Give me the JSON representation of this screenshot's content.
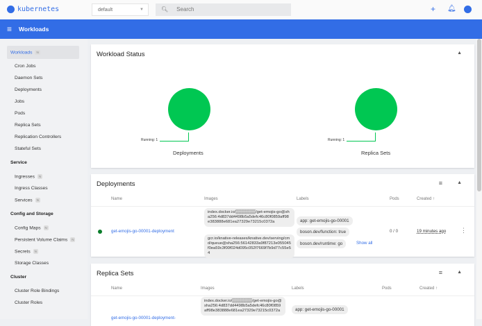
{
  "header": {
    "brand": "kubernetes",
    "namespace": "default",
    "search_placeholder": "Search"
  },
  "toolbar": {
    "title": "Workloads"
  },
  "sidebar": {
    "workloads": {
      "label": "Workloads",
      "badge": "N"
    },
    "workload_items": [
      "Cron Jobs",
      "Daemon Sets",
      "Deployments",
      "Jobs",
      "Pods",
      "Replica Sets",
      "Replication Controllers",
      "Stateful Sets"
    ],
    "service_header": "Service",
    "service_items": [
      {
        "label": "Ingresses",
        "badge": "N"
      },
      {
        "label": "Ingress Classes",
        "badge": ""
      },
      {
        "label": "Services",
        "badge": "N"
      }
    ],
    "config_header": "Config and Storage",
    "config_items": [
      {
        "label": "Config Maps",
        "badge": "N"
      },
      {
        "label": "Persistent Volume Claims",
        "badge": "N"
      },
      {
        "label": "Secrets",
        "badge": "N"
      },
      {
        "label": "Storage Classes",
        "badge": ""
      }
    ],
    "cluster_header": "Cluster",
    "cluster_items": [
      "Cluster Role Bindings",
      "Cluster Roles"
    ]
  },
  "workload_status": {
    "title": "Workload Status",
    "charts": [
      {
        "label": "Deployments",
        "legend": "Running: 1",
        "running": 1
      },
      {
        "label": "Replica Sets",
        "legend": "Running: 1",
        "running": 1
      }
    ],
    "color": "#00c752"
  },
  "columns": {
    "name": "Name",
    "images": "Images",
    "labels": "Labels",
    "pods": "Pods",
    "created": "Created",
    "sort_icon": "↑"
  },
  "deployments": {
    "title": "Deployments",
    "row": {
      "name": "get-emojis-go-00001-deployment",
      "images": [
        "index.docker.io/▒▒▒▒▒▒▒/get-emojis-go@sha256:4d837dd4498b5a5defc46c80f0859aff98e383888e681ea27329e73215c0372a",
        "gcr.io/knative-releases/knative.dev/serving/cmd/queue@sha256:56142833a9f87213e055045f0ea59c3f00f024d095c052f7669f7b9d77c55e54"
      ],
      "labels": [
        "app: get-emojis-go-00001",
        "boson.dev/function: true",
        "boson.dev/runtime: go"
      ],
      "show_all": "Show all",
      "pods": "0 / 0",
      "created": "19 minutes ago"
    }
  },
  "replica_sets": {
    "title": "Replica Sets",
    "row": {
      "name": "get-emojis-go-00001-deployment-",
      "images": [
        "index.docker.io/▒▒▒▒▒▒▒/get-emojis-go@sha256:4d837dd4498b5a5defc46c80f0859aff98e383888e681ea27329e73215c0372a"
      ],
      "labels": [
        "app: get-emojis-go-00001"
      ]
    }
  }
}
